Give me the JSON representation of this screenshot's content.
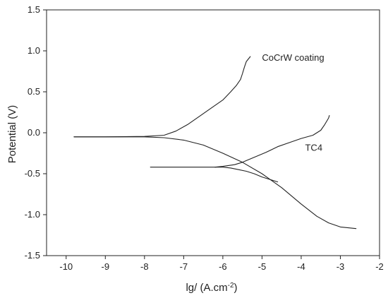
{
  "chart_data": {
    "type": "line",
    "xlabel": "lg/  (A.cm",
    "xlabel_sup": "-2",
    "xlabel_close": ")",
    "ylabel": "Potential (V)",
    "xlim": [
      -10.5,
      -2
    ],
    "ylim": [
      -1.5,
      1.5
    ],
    "xticks": [
      -10,
      -9,
      -8,
      -7,
      -6,
      -5,
      -4,
      -3,
      -2
    ],
    "yticks": [
      -1.5,
      -1.0,
      -0.5,
      0.0,
      0.5,
      1.0,
      1.5
    ],
    "xtick_labels": [
      "-10",
      "-9",
      "-8",
      "-7",
      "-6",
      "-5",
      "-4",
      "-3",
      "-2"
    ],
    "ytick_labels": [
      "-1.5",
      "-1.0",
      "-0.5",
      "0.0",
      "0.5",
      "1.0",
      "1.5"
    ],
    "grid": false,
    "line_color": "#222222",
    "annotations": [
      {
        "text": "CoCrW coating",
        "x": -5.0,
        "y": 0.88
      },
      {
        "text": "TC4",
        "x": -3.9,
        "y": -0.22
      }
    ],
    "series": [
      {
        "x": [
          -9.8,
          -9.0,
          -8.0,
          -7.5,
          -7.2,
          -6.9,
          -6.6,
          -6.3,
          -6.0,
          -5.8,
          -5.65,
          -5.55,
          -5.5,
          -5.45,
          -5.4,
          -5.3
        ],
        "y": [
          -0.05,
          -0.05,
          -0.045,
          -0.03,
          0.02,
          0.1,
          0.2,
          0.3,
          0.4,
          0.5,
          0.58,
          0.65,
          0.72,
          0.8,
          0.87,
          0.93
        ]
      },
      {
        "x": [
          -9.8,
          -9.0,
          -8.0,
          -7.5,
          -7.0,
          -6.5,
          -6.0,
          -5.5,
          -5.0,
          -4.5,
          -4.0,
          -3.6,
          -3.3,
          -3.0,
          -2.8,
          -2.6
        ],
        "y": [
          -0.05,
          -0.05,
          -0.05,
          -0.06,
          -0.09,
          -0.15,
          -0.25,
          -0.36,
          -0.5,
          -0.67,
          -0.87,
          -1.02,
          -1.1,
          -1.15,
          -1.16,
          -1.17
        ]
      },
      {
        "x": [
          -7.85,
          -7.0,
          -6.5,
          -6.2,
          -6.0,
          -5.7,
          -5.5,
          -5.2,
          -4.9,
          -4.6,
          -4.3,
          -4.0,
          -3.7,
          -3.5,
          -3.4,
          -3.3,
          -3.28
        ],
        "y": [
          -0.42,
          -0.42,
          -0.42,
          -0.42,
          -0.41,
          -0.39,
          -0.36,
          -0.3,
          -0.24,
          -0.17,
          -0.12,
          -0.07,
          -0.03,
          0.03,
          0.1,
          0.18,
          0.21
        ]
      },
      {
        "x": [
          -6.2,
          -6.0,
          -5.8,
          -5.6,
          -5.4,
          -5.2,
          -5.0,
          -4.8,
          -4.6
        ],
        "y": [
          -0.42,
          -0.42,
          -0.43,
          -0.45,
          -0.47,
          -0.5,
          -0.54,
          -0.57,
          -0.6
        ]
      }
    ]
  }
}
